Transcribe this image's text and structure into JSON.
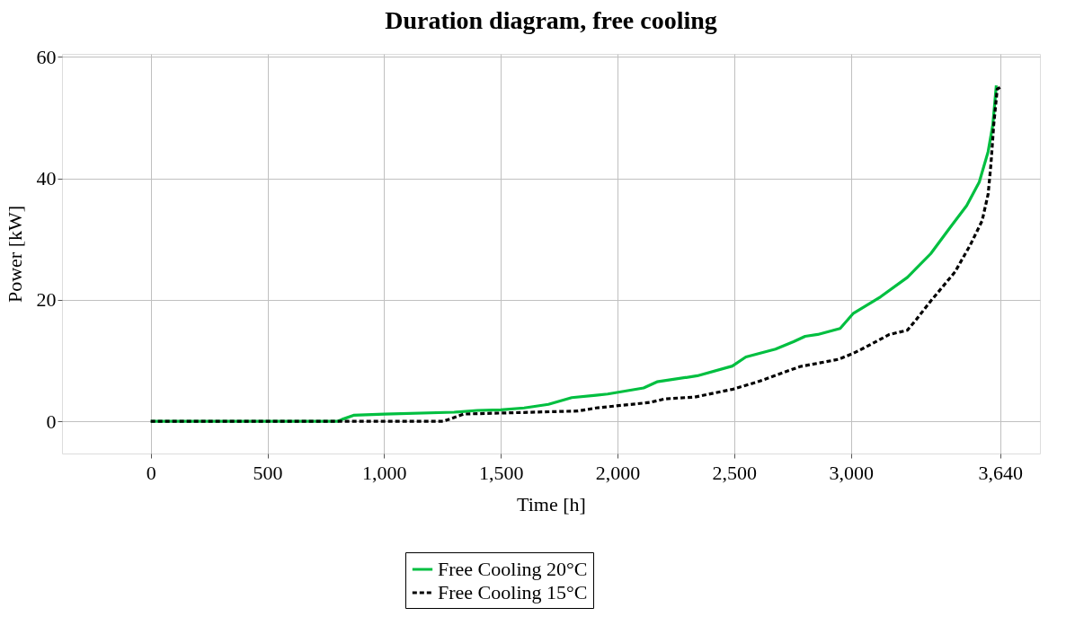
{
  "chart_data": {
    "type": "line",
    "title": "Duration diagram, free cooling",
    "xlabel": "Time [h]",
    "ylabel": "Power [kW]",
    "xlim": [
      -380,
      3810
    ],
    "ylim": [
      -5.3,
      60.5
    ],
    "xticks": [
      0,
      500,
      {
        "value": 1000,
        "label": "1,000"
      },
      {
        "value": 1500,
        "label": "1,500"
      },
      {
        "value": 2000,
        "label": "2,000"
      },
      {
        "value": 2500,
        "label": "2,500"
      },
      {
        "value": 3000,
        "label": "3,000"
      },
      {
        "value": 3640,
        "label": "3,640"
      }
    ],
    "yticks": [
      0,
      20,
      40,
      60
    ],
    "grid": true,
    "legend": "bottom",
    "marker": "none",
    "series": [
      {
        "name": "Free Cooling 20°C",
        "color": "#00bf40",
        "line_style": "solid",
        "x": [
          0,
          800,
          819,
          869,
          1000,
          1300,
          1400,
          1500,
          1600,
          1704,
          1804,
          1908,
          1958,
          2112,
          2169,
          2342,
          2492,
          2550,
          2677,
          2754,
          2804,
          2858,
          2954,
          3011,
          3127,
          3242,
          3342,
          3419,
          3496,
          3550,
          3588,
          3608,
          3623
        ],
        "values": [
          0,
          0,
          0.3,
          1.0,
          1.2,
          1.5,
          1.8,
          1.9,
          2.2,
          2.8,
          3.9,
          4.3,
          4.5,
          5.5,
          6.5,
          7.5,
          9.1,
          10.6,
          11.9,
          13.1,
          14.0,
          14.3,
          15.3,
          17.8,
          20.5,
          23.7,
          27.6,
          31.6,
          35.5,
          39.4,
          44.4,
          48.8,
          55.3
        ]
      },
      {
        "name": "Free Cooling 15°C",
        "color": "#000000",
        "line_style": "dashed",
        "x": [
          0,
          1254,
          1342,
          1831,
          1908,
          1958,
          2138,
          2204,
          2331,
          2496,
          2608,
          2781,
          2946,
          3011,
          3062,
          3165,
          3242,
          3281,
          3342,
          3446,
          3511,
          3562,
          3588,
          3600,
          3612,
          3627,
          3645
        ],
        "values": [
          0,
          0,
          1.2,
          1.7,
          2.2,
          2.4,
          3.1,
          3.7,
          4.0,
          5.3,
          6.6,
          9.0,
          10.2,
          11.2,
          12.2,
          14.3,
          15.0,
          16.8,
          19.8,
          24.6,
          29.0,
          33.0,
          37.4,
          42.3,
          48.8,
          54.7,
          55.1
        ]
      }
    ]
  }
}
